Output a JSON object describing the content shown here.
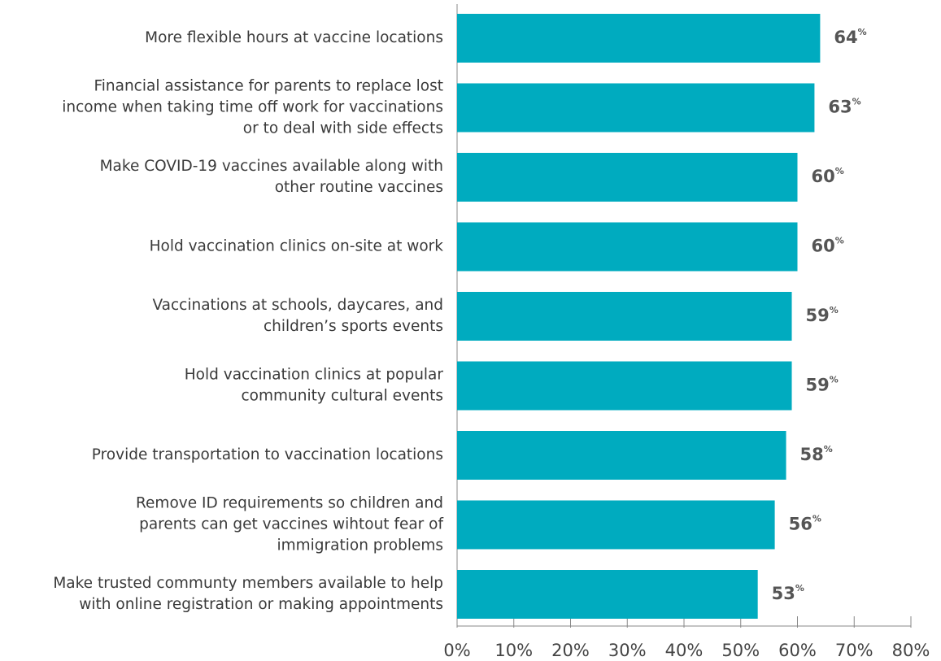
{
  "chart_data": {
    "type": "barh",
    "categories": [
      "More flexible hours at vaccine locations",
      "Financial assistance for parents to replace lost\nincome when taking time off work for vaccinations\nor to deal with side effects",
      "Make COVID-19 vaccines available along with\nother routine vaccines",
      "Hold vaccination clinics on-site at work",
      "Vaccinations at schools, daycares, and\nchildren’s sports events",
      "Hold vaccination clinics at popular\ncommunity cultural events",
      "Provide transportation to vaccination locations",
      "Remove ID requirements so children and\nparents can get vaccines wihtout fear of\nimmigration problems",
      "Make trusted communty members available to help\nwith online registration or making appointments"
    ],
    "values": [
      64,
      63,
      60,
      60,
      59,
      59,
      58,
      56,
      53
    ],
    "value_labels": [
      "64%",
      "63%",
      "60%",
      "60%",
      "59%",
      "59%",
      "58%",
      "56%",
      "53%"
    ],
    "color": "#00abbf",
    "xlim": [
      0,
      80
    ],
    "xticks": [
      {
        "value": 0,
        "label": "0%"
      },
      {
        "value": 10,
        "label": "10%"
      },
      {
        "value": 20,
        "label": "20%"
      },
      {
        "value": 30,
        "label": "30%"
      },
      {
        "value": 40,
        "label": "40%"
      },
      {
        "value": 50,
        "label": "50%"
      },
      {
        "value": 60,
        "label": "60%"
      },
      {
        "value": 70,
        "label": "70%"
      },
      {
        "value": 80,
        "label": "80%"
      }
    ]
  }
}
